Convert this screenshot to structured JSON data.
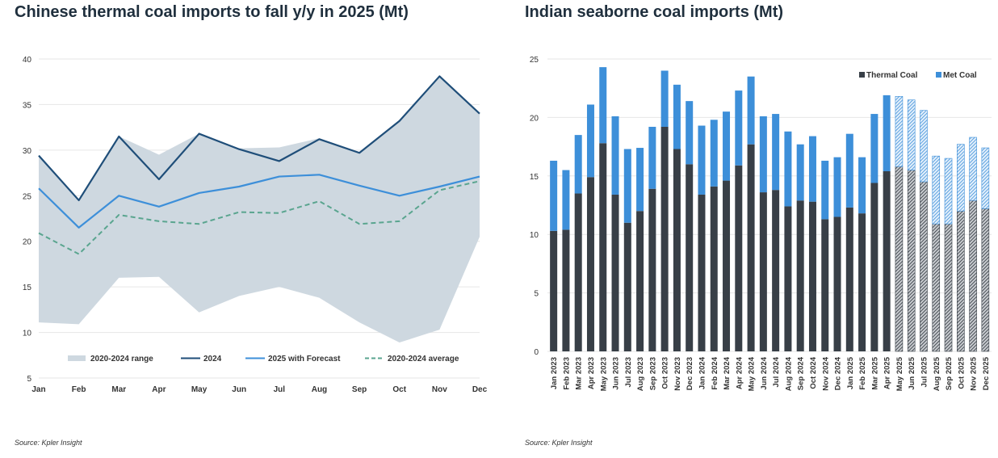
{
  "chart_data": [
    {
      "type": "line",
      "title": "Chinese thermal coal imports to fall y/y in 2025 (Mt)",
      "source": "Source: Kpler Insight",
      "categories": [
        "Jan",
        "Feb",
        "Mar",
        "Apr",
        "May",
        "Jun",
        "Jul",
        "Aug",
        "Sep",
        "Oct",
        "Nov",
        "Dec"
      ],
      "ylim": [
        5,
        40
      ],
      "yticks": [
        "40",
        "35",
        "30",
        "25",
        "20",
        "15",
        "10",
        "5"
      ],
      "ytick_values": [
        40,
        35,
        30,
        25,
        20,
        15,
        10,
        5
      ],
      "grid": true,
      "legend_position": "bottom",
      "range": {
        "name": "2020-2024 range",
        "color": "#ced8e0",
        "min": [
          11.1,
          10.9,
          16.0,
          16.1,
          12.2,
          14.0,
          15.0,
          13.8,
          11.1,
          8.9,
          10.3,
          20.5
        ],
        "max": [
          29.4,
          24.5,
          31.5,
          29.5,
          31.8,
          30.2,
          30.3,
          31.3,
          29.8,
          33.2,
          38.1,
          34.0
        ]
      },
      "series": [
        {
          "name": "2024",
          "color": "#1f4e79",
          "style": "solid",
          "width": 2.2,
          "values": [
            29.4,
            24.5,
            31.5,
            26.8,
            31.8,
            30.1,
            28.8,
            31.2,
            29.7,
            33.2,
            38.1,
            34.0
          ]
        },
        {
          "name": "2025 with Forecast",
          "color": "#3d8fd9",
          "style": "solid",
          "width": 2.2,
          "values": [
            25.8,
            21.5,
            25.0,
            23.8,
            25.3,
            26.0,
            27.1,
            27.3,
            26.1,
            25.0,
            26.0,
            27.1
          ]
        },
        {
          "name": "2020-2024 average",
          "color": "#5aa58f",
          "style": "dashed",
          "width": 2,
          "values": [
            20.9,
            18.6,
            22.9,
            22.2,
            21.9,
            23.2,
            23.1,
            24.4,
            21.9,
            22.2,
            25.6,
            26.6
          ]
        }
      ]
    },
    {
      "type": "bar",
      "stacked": true,
      "title": "Indian seaborne coal imports (Mt)",
      "source": "Source: Kpler Insight",
      "categories": [
        "Jan 2023",
        "Feb 2023",
        "Mar 2023",
        "Apr 2023",
        "May 2023",
        "Jun 2023",
        "Jul 2023",
        "Aug 2023",
        "Sep 2023",
        "Oct 2023",
        "Nov 2023",
        "Dec 2023",
        "Jan 2024",
        "Feb 2024",
        "Mar 2024",
        "Apr 2024",
        "May 2024",
        "Jun 2024",
        "Jul 2024",
        "Aug 2024",
        "Sep 2024",
        "Oct 2024",
        "Nov 2024",
        "Dec 2024",
        "Jan 2025",
        "Feb 2025",
        "Mar 2025",
        "Apr 2025",
        "May 2025",
        "Jun 2025",
        "Jul 2025",
        "Aug 2025",
        "Sep 2025",
        "Oct 2025",
        "Nov 2025",
        "Dec 2025"
      ],
      "forecast_start_index": 28,
      "ylim": [
        0,
        25
      ],
      "yticks": [
        "25",
        "20",
        "15",
        "10",
        "5",
        "0"
      ],
      "ytick_values": [
        25,
        20,
        15,
        10,
        5,
        0
      ],
      "grid": true,
      "legend_position": "top-right",
      "series": [
        {
          "name": "Thermal Coal",
          "color": "#383f47",
          "values": [
            10.3,
            10.4,
            13.5,
            14.9,
            17.8,
            13.4,
            11.0,
            12.0,
            13.9,
            19.2,
            17.3,
            16.0,
            13.4,
            14.1,
            14.6,
            15.9,
            17.7,
            13.6,
            13.8,
            12.4,
            12.9,
            12.8,
            11.3,
            11.5,
            12.3,
            11.8,
            14.4,
            15.4,
            15.8,
            15.5,
            14.5,
            10.9,
            10.9,
            12.0,
            12.9,
            12.2
          ]
        },
        {
          "name": "Met Coal",
          "color": "#3d8fd9",
          "values": [
            6.0,
            5.1,
            5.0,
            6.2,
            6.5,
            6.7,
            6.3,
            5.4,
            5.3,
            4.8,
            5.5,
            5.4,
            5.9,
            5.7,
            5.9,
            6.4,
            5.8,
            6.5,
            6.5,
            6.4,
            4.8,
            5.6,
            5.0,
            5.1,
            6.3,
            4.8,
            5.9,
            6.5,
            6.0,
            6.0,
            6.1,
            5.8,
            5.6,
            5.7,
            5.4,
            5.2
          ]
        }
      ]
    }
  ]
}
